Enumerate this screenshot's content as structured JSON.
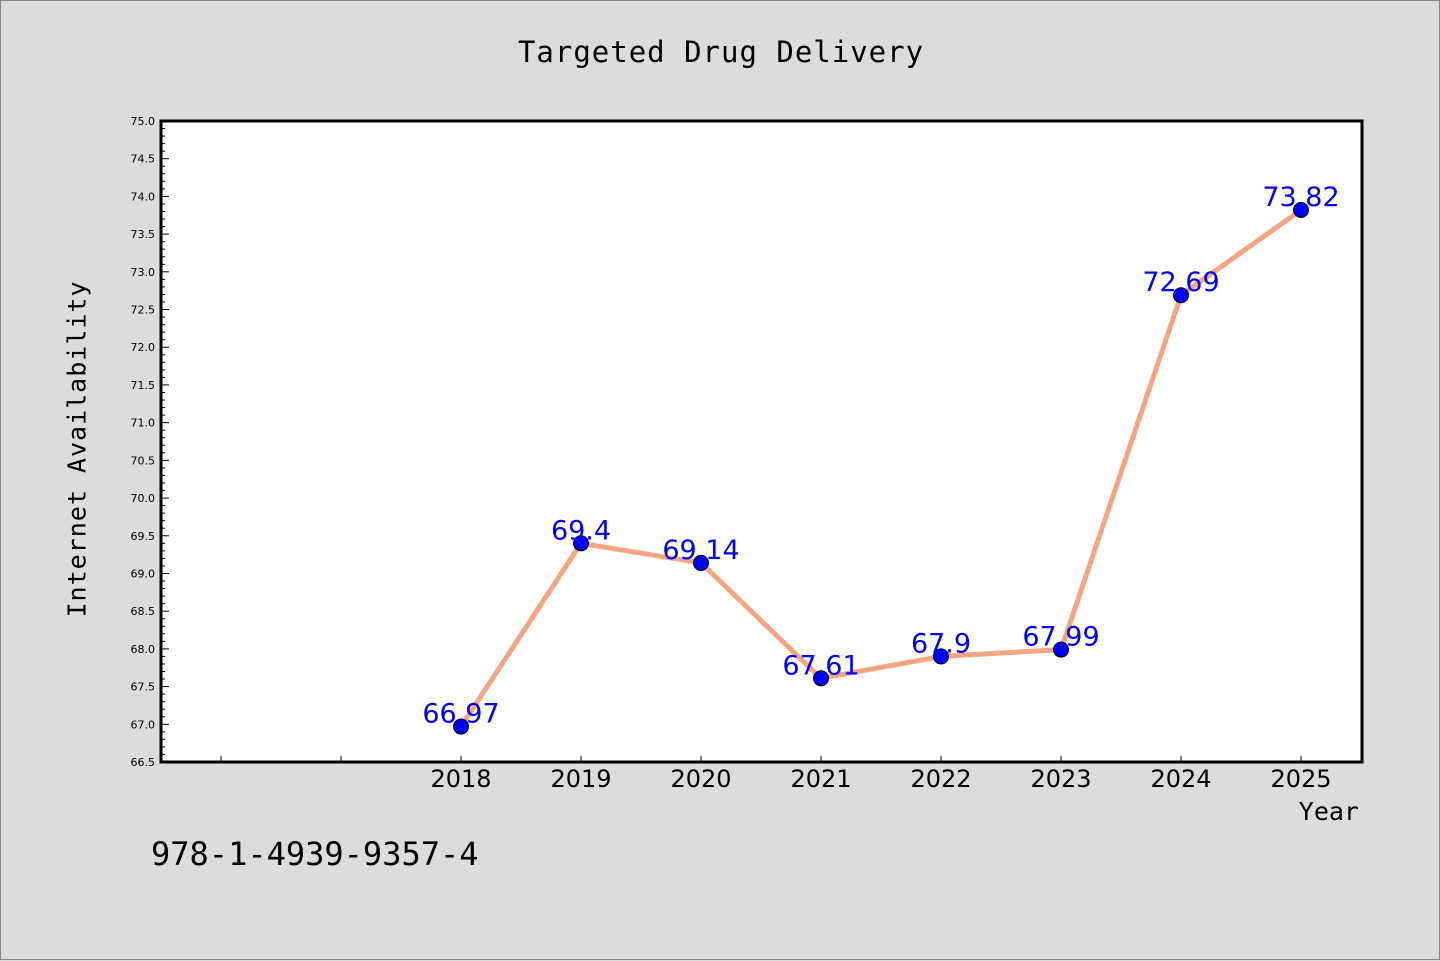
{
  "chart_data": {
    "type": "line",
    "title": "Targeted Drug Delivery",
    "xlabel": "Year",
    "ylabel": "Internet Availability",
    "x": [
      "2018",
      "2019",
      "2020",
      "2021",
      "2022",
      "2023",
      "2024",
      "2025"
    ],
    "series": [
      {
        "values": [
          66.97,
          69.4,
          69.14,
          67.61,
          67.9,
          67.99,
          72.69,
          73.82
        ],
        "data_labels": [
          "66.97",
          "69.4",
          "69.14",
          "67.61",
          "67.9",
          "67.99",
          "72.69",
          "73.82"
        ]
      }
    ],
    "ylim": [
      66.5,
      75.0
    ],
    "yticks": [
      "66.5",
      "67.0",
      "67.5",
      "68.0",
      "68.5",
      "69.0",
      "69.5",
      "70.0",
      "70.5",
      "71.0",
      "71.5",
      "72.0",
      "72.5",
      "73.0",
      "73.5",
      "74.0",
      "74.5",
      "75.0"
    ],
    "grid": false,
    "colors": {
      "line": "#f4a582",
      "marker": "#0000ff",
      "label": "#0000ff",
      "background": "#dcdcdc",
      "plot_background": "#ffffff"
    }
  },
  "footer_text": "978-1-4939-9357-4"
}
